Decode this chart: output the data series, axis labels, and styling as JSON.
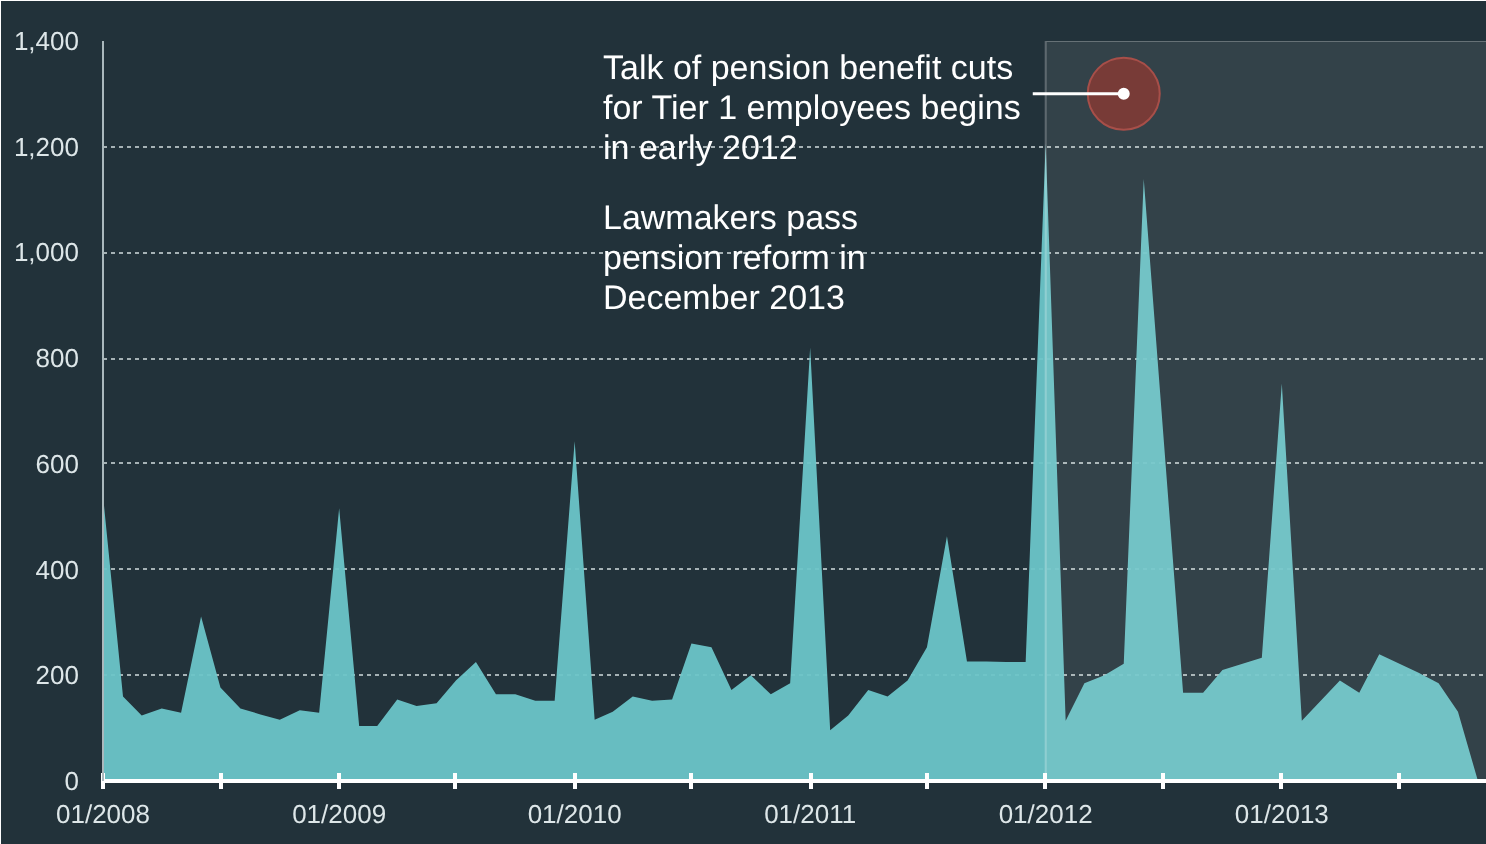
{
  "chart_data": {
    "type": "area",
    "x": [
      "2008-01",
      "2008-02",
      "2008-03",
      "2008-04",
      "2008-05",
      "2008-06",
      "2008-07",
      "2008-08",
      "2008-09",
      "2008-10",
      "2008-11",
      "2008-12",
      "2009-01",
      "2009-02",
      "2009-03",
      "2009-04",
      "2009-05",
      "2009-06",
      "2009-07",
      "2009-08",
      "2009-09",
      "2009-10",
      "2009-11",
      "2009-12",
      "2010-01",
      "2010-02",
      "2010-03",
      "2010-04",
      "2010-05",
      "2010-06",
      "2010-07",
      "2010-08",
      "2010-09",
      "2010-10",
      "2010-11",
      "2010-12",
      "2011-01",
      "2011-02",
      "2011-03",
      "2011-04",
      "2011-05",
      "2011-06",
      "2011-07",
      "2011-08",
      "2011-09",
      "2011-10",
      "2011-11",
      "2011-12",
      "2012-01",
      "2012-02",
      "2012-03",
      "2012-04",
      "2012-05",
      "2012-06",
      "2012-08",
      "2012-09",
      "2012-10",
      "2012-12",
      "2013-01",
      "2013-02",
      "2013-04",
      "2013-05",
      "2013-06",
      "2013-08",
      "2013-09",
      "2013-10",
      "2013-11"
    ],
    "series": [
      {
        "color": "#6cc5c8",
        "values": [
          540,
          160,
          124,
          137,
          129,
          311,
          177,
          137,
          126,
          116,
          134,
          129,
          516,
          104,
          104,
          154,
          142,
          147,
          190,
          225,
          164,
          164,
          152,
          152,
          643,
          116,
          131,
          160,
          152,
          154,
          260,
          253,
          172,
          200,
          164,
          185,
          820,
          96,
          124,
          172,
          160,
          190,
          253,
          463,
          226,
          226,
          225,
          225,
          1206,
          114,
          185,
          200,
          222,
          1139,
          167,
          167,
          210,
          233,
          752,
          114,
          190,
          167,
          240,
          205,
          185,
          131,
          0
        ]
      }
    ],
    "xlim": [
      "2008-01",
      "2013-11-15"
    ],
    "ylim": [
      0,
      1400
    ],
    "yticks": [
      0,
      200,
      400,
      600,
      800,
      {
        "value": 1000,
        "label": "1,000"
      },
      {
        "value": 1200,
        "label": "1,200"
      },
      {
        "value": 1400,
        "label": "1,400"
      }
    ],
    "xticks": [
      {
        "value": "2008-01",
        "label": "01/2008"
      },
      {
        "value": "2008-07",
        "label": null
      },
      {
        "value": "2009-01",
        "label": "01/2009"
      },
      {
        "value": "2009-07",
        "label": null
      },
      {
        "value": "2010-01",
        "label": "01/2010"
      },
      {
        "value": "2010-07",
        "label": null
      },
      {
        "value": "2011-01",
        "label": "01/2011"
      },
      {
        "value": "2011-07",
        "label": null
      },
      {
        "value": "2012-01",
        "label": "01/2012"
      },
      {
        "value": "2012-07",
        "label": null
      },
      {
        "value": "2013-01",
        "label": "01/2013"
      },
      {
        "value": "2013-07",
        "label": null
      }
    ],
    "grid": "y",
    "bands": [
      {
        "axis": "x",
        "from": "2012-01",
        "to": "2013-11-15",
        "color": "#ffffff"
      }
    ],
    "annotations": [
      {
        "text": "Talk of pension benefit cuts\nfor Tier 1 employees begins\nin early 2012",
        "x": "2012-05",
        "y": 1300
      },
      "Lawmakers pass\npension reform in\nDecember 2013"
    ]
  }
}
